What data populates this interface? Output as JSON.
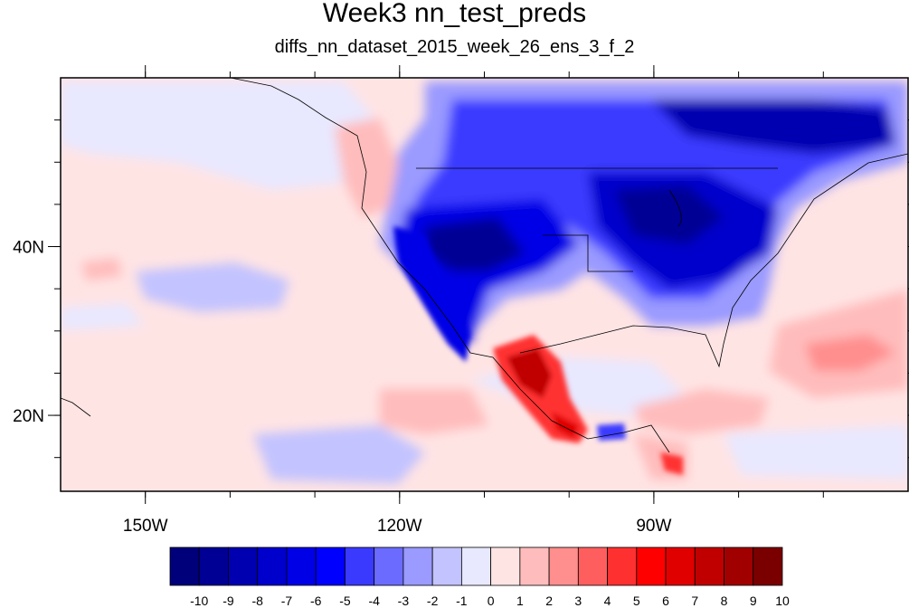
{
  "title": "Week3 nn_test_preds",
  "subtitle": "diffs_nn_dataset_2015_week_26_ens_3_f_2",
  "map": {
    "lon_range": [
      -160,
      -60
    ],
    "lat_range": [
      11,
      60
    ],
    "x_ticks": [
      {
        "lon": -150,
        "label": "150W"
      },
      {
        "lon": -120,
        "label": "120W"
      },
      {
        "lon": -90,
        "label": "90W"
      }
    ],
    "y_ticks": [
      {
        "lat": 40,
        "label": "40N"
      },
      {
        "lat": 20,
        "label": "20N"
      }
    ]
  },
  "colorbar": {
    "levels": [
      "-10",
      "-9",
      "-8",
      "-7",
      "-6",
      "-5",
      "-4",
      "-3",
      "-2",
      "-1",
      "0",
      "1",
      "2",
      "3",
      "4",
      "5",
      "6",
      "7",
      "8",
      "9",
      "10"
    ],
    "colors": [
      "#00007a",
      "#000094",
      "#0000b0",
      "#0000cc",
      "#0000e6",
      "#0000ff",
      "#3a3aff",
      "#6b6bff",
      "#9a9aff",
      "#c3c3ff",
      "#e8e8ff",
      "#ffe4e4",
      "#ffbcbc",
      "#ff8e8e",
      "#ff5e5e",
      "#ff3030",
      "#ff0000",
      "#e00000",
      "#c00000",
      "#a00000",
      "#7a0000"
    ]
  }
}
